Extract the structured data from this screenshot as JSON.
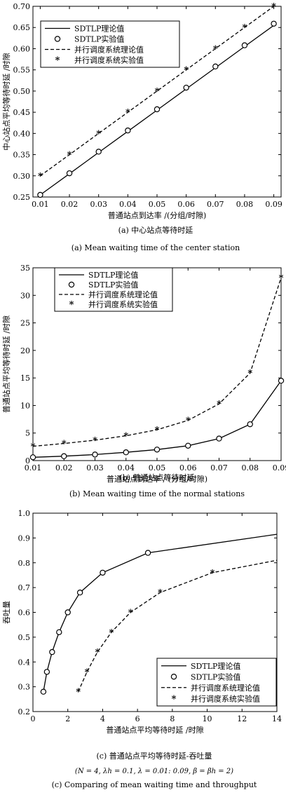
{
  "chart_data": [
    {
      "type": "line",
      "caption_cn": "(a) 中心站点等待时延",
      "caption_en": "(a) Mean waiting time of the center station",
      "xlabel": "普通站点到达率 /(分组/时隙)",
      "ylabel": "中心站点平均等待时延 /时隙",
      "xlim": [
        0.0075,
        0.0925
      ],
      "ylim": [
        0.25,
        0.7
      ],
      "x_ticks": [
        0.01,
        0.02,
        0.03,
        0.04,
        0.05,
        0.06,
        0.07,
        0.08,
        0.09
      ],
      "x_tick_labels": [
        "0.01",
        "0.02",
        "0.03",
        "0.04",
        "0.05",
        "0.06",
        "0.07",
        "0.08",
        "0.09"
      ],
      "y_ticks": [
        0.25,
        0.3,
        0.35,
        0.4,
        0.45,
        0.5,
        0.55,
        0.6,
        0.65,
        0.7
      ],
      "y_tick_labels": [
        "0.25",
        "0.30",
        "0.35",
        "0.40",
        "0.45",
        "0.50",
        "0.55",
        "0.60",
        "0.65",
        "0.70"
      ],
      "legend_position": "top-left",
      "series": [
        {
          "name": "SDTLP理论值",
          "style": "solid",
          "marker": "none",
          "x": [
            0.01,
            0.02,
            0.03,
            0.04,
            0.05,
            0.06,
            0.07,
            0.08,
            0.09
          ],
          "y": [
            0.255,
            0.305,
            0.355,
            0.405,
            0.455,
            0.505,
            0.555,
            0.605,
            0.655
          ]
        },
        {
          "name": "SDTLP实验值",
          "style": "none",
          "marker": "circle",
          "x": [
            0.01,
            0.02,
            0.03,
            0.04,
            0.05,
            0.06,
            0.07,
            0.08,
            0.09
          ],
          "y": [
            0.255,
            0.306,
            0.357,
            0.407,
            0.457,
            0.508,
            0.558,
            0.608,
            0.659
          ]
        },
        {
          "name": "并行调度系统理论值",
          "style": "dashed",
          "marker": "none",
          "x": [
            0.01,
            0.02,
            0.03,
            0.04,
            0.05,
            0.06,
            0.07,
            0.08,
            0.09
          ],
          "y": [
            0.3,
            0.35,
            0.4,
            0.45,
            0.5,
            0.55,
            0.6,
            0.65,
            0.7
          ]
        },
        {
          "name": "并行调度系统实验值",
          "style": "none",
          "marker": "star",
          "x": [
            0.01,
            0.02,
            0.03,
            0.04,
            0.05,
            0.06,
            0.07,
            0.08,
            0.09
          ],
          "y": [
            0.3,
            0.35,
            0.4,
            0.45,
            0.5,
            0.55,
            0.6,
            0.65,
            0.7
          ]
        }
      ]
    },
    {
      "type": "line",
      "caption_cn": "(b) 普通站点等待时延",
      "caption_en": "(b) Mean waiting time of the normal stations",
      "xlabel": "普通站点到达率 / (分组/时隙)",
      "ylabel": "普通站点平均等待时延 /时隙",
      "xlim": [
        0.01,
        0.09
      ],
      "ylim": [
        0,
        35
      ],
      "x_ticks": [
        0.01,
        0.02,
        0.03,
        0.04,
        0.05,
        0.06,
        0.07,
        0.08,
        0.09
      ],
      "x_tick_labels": [
        "0.01",
        "0.02",
        "0.03",
        "0.04",
        "0.05",
        "0.06",
        "0.07",
        "0.08",
        "0.09"
      ],
      "y_ticks": [
        0,
        5,
        10,
        15,
        20,
        25,
        30,
        35
      ],
      "y_tick_labels": [
        "0",
        "5",
        "10",
        "15",
        "20",
        "25",
        "30",
        "35"
      ],
      "legend_position": "top-left",
      "series": [
        {
          "name": "SDTLP理论值",
          "style": "solid",
          "marker": "none",
          "x": [
            0.01,
            0.02,
            0.03,
            0.04,
            0.05,
            0.06,
            0.07,
            0.08,
            0.09
          ],
          "y": [
            0.6,
            0.8,
            1.1,
            1.5,
            2.0,
            2.7,
            4.0,
            6.6,
            14.5
          ]
        },
        {
          "name": "SDTLP实验值",
          "style": "none",
          "marker": "circle",
          "x": [
            0.01,
            0.02,
            0.03,
            0.04,
            0.05,
            0.06,
            0.07,
            0.08,
            0.09
          ],
          "y": [
            0.6,
            0.8,
            1.1,
            1.5,
            2.0,
            2.7,
            4.0,
            6.6,
            14.5
          ]
        },
        {
          "name": "并行调度系统理论值",
          "style": "dashed",
          "marker": "none",
          "x": [
            0.01,
            0.02,
            0.03,
            0.04,
            0.05,
            0.06,
            0.07,
            0.08,
            0.09
          ],
          "y": [
            2.6,
            3.1,
            3.7,
            4.5,
            5.6,
            7.3,
            10.3,
            15.9,
            33.2
          ]
        },
        {
          "name": "并行调度系统实验值",
          "style": "none",
          "marker": "star",
          "x": [
            0.01,
            0.02,
            0.03,
            0.04,
            0.05,
            0.06,
            0.07,
            0.08,
            0.09
          ],
          "y": [
            2.6,
            3.1,
            3.7,
            4.5,
            5.6,
            7.3,
            10.3,
            15.9,
            33.2
          ]
        }
      ]
    },
    {
      "type": "line",
      "caption_cn": "(c) 普通站点平均等待时延-吞吐量",
      "caption_params": "(N = 4,  λh = 0.1,  λ = 0.01: 0.09,  β = βh = 2)",
      "caption_en": "(c) Comparing of mean waiting time and throughput",
      "xlabel": "普通站点平均等待时延 /时隙",
      "ylabel": "吞吐量",
      "xlim": [
        0,
        14
      ],
      "ylim": [
        0.2,
        1.0
      ],
      "x_ticks": [
        0,
        2,
        4,
        6,
        8,
        10,
        12,
        14
      ],
      "x_tick_labels": [
        "0",
        "2",
        "4",
        "6",
        "8",
        "10",
        "12",
        "14"
      ],
      "y_ticks": [
        0.2,
        0.3,
        0.4,
        0.5,
        0.6,
        0.7,
        0.8,
        0.9,
        1.0
      ],
      "y_tick_labels": [
        "0.2",
        "0.3",
        "0.4",
        "0.5",
        "0.6",
        "0.7",
        "0.8",
        "0.9",
        "1.0"
      ],
      "legend_position": "bottom-right",
      "series": [
        {
          "name": "SDTLP理论值",
          "style": "solid",
          "marker": "none",
          "x": [
            0.6,
            0.8,
            1.1,
            1.5,
            2.0,
            2.7,
            4.0,
            6.6,
            14.0
          ],
          "y": [
            0.28,
            0.36,
            0.44,
            0.52,
            0.6,
            0.68,
            0.76,
            0.84,
            0.915
          ]
        },
        {
          "name": "SDTLP实验值",
          "style": "none",
          "marker": "circle",
          "x": [
            0.6,
            0.8,
            1.1,
            1.5,
            2.0,
            2.7,
            4.0,
            6.6
          ],
          "y": [
            0.28,
            0.36,
            0.44,
            0.52,
            0.6,
            0.68,
            0.76,
            0.84
          ]
        },
        {
          "name": "并行调度系统理论值",
          "style": "dashed",
          "marker": "none",
          "x": [
            2.6,
            3.1,
            3.7,
            4.5,
            5.6,
            7.3,
            10.3,
            14.0
          ],
          "y": [
            0.28,
            0.36,
            0.44,
            0.52,
            0.6,
            0.68,
            0.76,
            0.81
          ]
        },
        {
          "name": "并行调度系统实验值",
          "style": "none",
          "marker": "star",
          "x": [
            2.6,
            3.1,
            3.7,
            4.5,
            5.6,
            7.3,
            10.3
          ],
          "y": [
            0.28,
            0.36,
            0.44,
            0.52,
            0.6,
            0.68,
            0.76
          ]
        }
      ]
    }
  ]
}
